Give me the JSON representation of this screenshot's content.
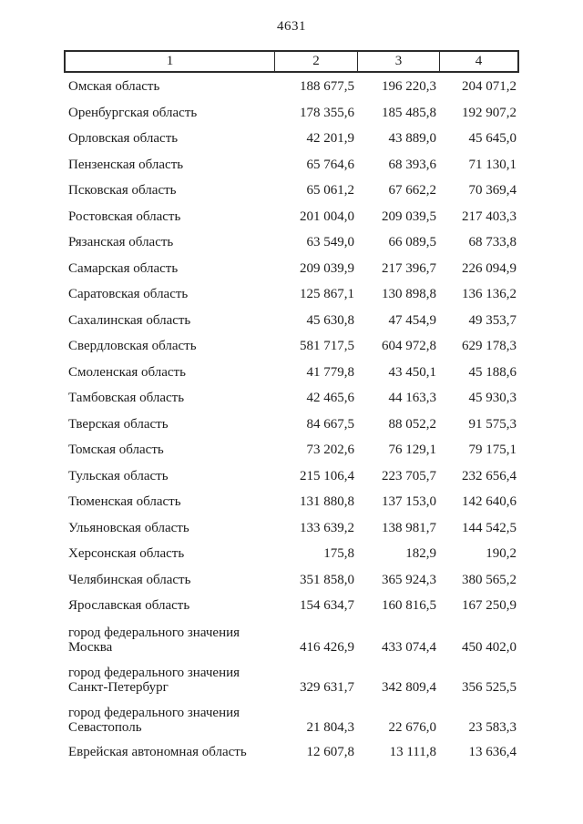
{
  "page": {
    "number": "4631"
  },
  "colors": {
    "text": "#1c1c1c",
    "border": "#2b2b2b",
    "background": "#ffffff"
  },
  "table": {
    "header": [
      "1",
      "2",
      "3",
      "4"
    ],
    "rows": [
      {
        "lines": [
          "Омская область"
        ],
        "values": [
          "188 677,5",
          "196 220,3",
          "204 071,2"
        ]
      },
      {
        "lines": [
          "Оренбургская область"
        ],
        "values": [
          "178 355,6",
          "185 485,8",
          "192 907,2"
        ]
      },
      {
        "lines": [
          "Орловская область"
        ],
        "values": [
          "42 201,9",
          "43 889,0",
          "45 645,0"
        ]
      },
      {
        "lines": [
          "Пензенская область"
        ],
        "values": [
          "65 764,6",
          "68 393,6",
          "71 130,1"
        ]
      },
      {
        "lines": [
          "Псковская область"
        ],
        "values": [
          "65 061,2",
          "67 662,2",
          "70 369,4"
        ]
      },
      {
        "lines": [
          "Ростовская область"
        ],
        "values": [
          "201 004,0",
          "209 039,5",
          "217 403,3"
        ]
      },
      {
        "lines": [
          "Рязанская область"
        ],
        "values": [
          "63 549,0",
          "66 089,5",
          "68 733,8"
        ]
      },
      {
        "lines": [
          "Самарская область"
        ],
        "values": [
          "209 039,9",
          "217 396,7",
          "226 094,9"
        ]
      },
      {
        "lines": [
          "Саратовская область"
        ],
        "values": [
          "125 867,1",
          "130 898,8",
          "136 136,2"
        ]
      },
      {
        "lines": [
          "Сахалинская область"
        ],
        "values": [
          "45 630,8",
          "47 454,9",
          "49 353,7"
        ]
      },
      {
        "lines": [
          "Свердловская область"
        ],
        "values": [
          "581 717,5",
          "604 972,8",
          "629 178,3"
        ]
      },
      {
        "lines": [
          "Смоленская область"
        ],
        "values": [
          "41 779,8",
          "43 450,1",
          "45 188,6"
        ]
      },
      {
        "lines": [
          "Тамбовская область"
        ],
        "values": [
          "42 465,6",
          "44 163,3",
          "45 930,3"
        ]
      },
      {
        "lines": [
          "Тверская область"
        ],
        "values": [
          "84 667,5",
          "88 052,2",
          "91 575,3"
        ]
      },
      {
        "lines": [
          "Томская область"
        ],
        "values": [
          "73 202,6",
          "76 129,1",
          "79 175,1"
        ]
      },
      {
        "lines": [
          "Тульская область"
        ],
        "values": [
          "215 106,4",
          "223 705,7",
          "232 656,4"
        ]
      },
      {
        "lines": [
          "Тюменская область"
        ],
        "values": [
          "131 880,8",
          "137 153,0",
          "142 640,6"
        ]
      },
      {
        "lines": [
          "Ульяновская область"
        ],
        "values": [
          "133 639,2",
          "138 981,7",
          "144 542,5"
        ]
      },
      {
        "lines": [
          "Херсонская область"
        ],
        "values": [
          "175,8",
          "182,9",
          "190,2"
        ]
      },
      {
        "lines": [
          "Челябинская область"
        ],
        "values": [
          "351 858,0",
          "365 924,3",
          "380 565,2"
        ]
      },
      {
        "lines": [
          "Ярославская область"
        ],
        "values": [
          "154 634,7",
          "160 816,5",
          "167 250,9"
        ]
      },
      {
        "lines": [
          "город федерального значения",
          "Москва"
        ],
        "values": [
          "416 426,9",
          "433 074,4",
          "450 402,0"
        ]
      },
      {
        "lines": [
          "город федерального значения",
          "Санкт-Петербург"
        ],
        "values": [
          "329 631,7",
          "342 809,4",
          "356 525,5"
        ]
      },
      {
        "lines": [
          "город федерального значения",
          "Севастополь"
        ],
        "values": [
          "21 804,3",
          "22 676,0",
          "23 583,3"
        ]
      },
      {
        "lines": [
          "Еврейская автономная область"
        ],
        "values": [
          "12 607,8",
          "13 111,8",
          "13 636,4"
        ]
      }
    ]
  }
}
